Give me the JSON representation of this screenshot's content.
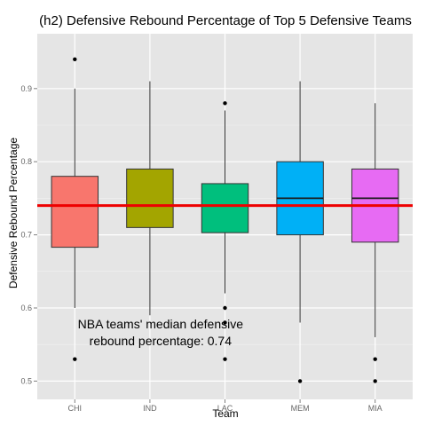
{
  "chart_data": {
    "type": "box",
    "title": "(h2) Defensive Rebound Percentage of Top 5 Defensive Teams",
    "xlabel": "Team",
    "ylabel": "Defensive Rebound Percentage",
    "categories": [
      "CHI",
      "IND",
      "LAC",
      "MEM",
      "MIA"
    ],
    "ylim": [
      0.475,
      0.975
    ],
    "yticks": [
      0.5,
      0.6,
      0.7,
      0.8,
      0.9
    ],
    "grid": true,
    "boxes": [
      {
        "category": "CHI",
        "whisker_low": 0.6,
        "q1": 0.683,
        "median": 0.74,
        "q3": 0.78,
        "whisker_high": 0.9,
        "outliers": [
          0.94,
          0.53
        ],
        "color": "#F8766D"
      },
      {
        "category": "IND",
        "whisker_low": 0.59,
        "q1": 0.71,
        "median": 0.74,
        "q3": 0.79,
        "whisker_high": 0.91,
        "outliers": [],
        "color": "#A3A500"
      },
      {
        "category": "LAC",
        "whisker_low": 0.62,
        "q1": 0.703,
        "median": 0.74,
        "q3": 0.77,
        "whisker_high": 0.87,
        "outliers": [
          0.88,
          0.6,
          0.58,
          0.53
        ],
        "color": "#00BF7D"
      },
      {
        "category": "MEM",
        "whisker_low": 0.58,
        "q1": 0.7,
        "median": 0.75,
        "q3": 0.8,
        "whisker_high": 0.91,
        "outliers": [
          0.5
        ],
        "color": "#00B0F6"
      },
      {
        "category": "MIA",
        "whisker_low": 0.56,
        "q1": 0.69,
        "median": 0.75,
        "q3": 0.79,
        "whisker_high": 0.88,
        "outliers": [
          0.53,
          0.5
        ],
        "color": "#E76BF3"
      }
    ],
    "reference_line": {
      "value": 0.74,
      "color": "#EE0000"
    },
    "annotation": {
      "line1": "NBA teams' median defensive",
      "line2": "rebound percentage: 0.74",
      "x_category_position": 0.4,
      "y_value_line1": 0.578,
      "y_value_line2": 0.555
    },
    "panel_background": "#E5E5E5",
    "grid_color": "#FFFFFF"
  }
}
